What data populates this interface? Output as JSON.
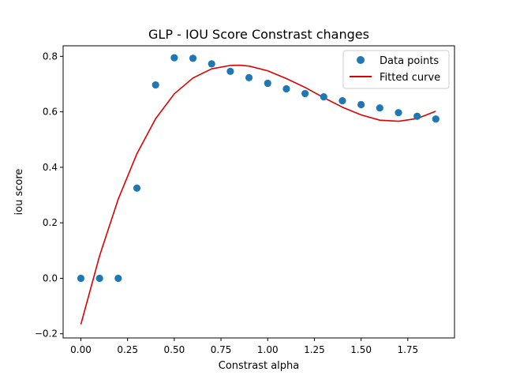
{
  "chart_data": {
    "type": "scatter",
    "title": "GLP - IOU Score Constrast changes",
    "xlabel": "Constrast alpha",
    "ylabel": "iou score",
    "xlim": [
      -0.095,
      2.0
    ],
    "ylim": [
      -0.215,
      0.838
    ],
    "xticks": [
      0.0,
      0.25,
      0.5,
      0.75,
      1.0,
      1.25,
      1.5,
      1.75
    ],
    "xtick_labels": [
      "0.00",
      "0.25",
      "0.50",
      "0.75",
      "1.00",
      "1.25",
      "1.50",
      "1.75"
    ],
    "yticks": [
      -0.2,
      0.0,
      0.2,
      0.4,
      0.6,
      0.8
    ],
    "ytick_labels": [
      "−0.2",
      "0.0",
      "0.2",
      "0.4",
      "0.6",
      "0.8"
    ],
    "grid": false,
    "legend_position": "top-right",
    "colors": {
      "points": "#1f77b4",
      "curve": "#dd0000"
    },
    "series": [
      {
        "name": "Data points",
        "kind": "scatter",
        "x": [
          0.0,
          0.1,
          0.2,
          0.3,
          0.4,
          0.5,
          0.6,
          0.7,
          0.8,
          0.9,
          1.0,
          1.1,
          1.2,
          1.3,
          1.4,
          1.5,
          1.6,
          1.7,
          1.8,
          1.9
        ],
        "y": [
          0.0,
          0.0,
          0.0,
          0.325,
          0.697,
          0.795,
          0.793,
          0.773,
          0.746,
          0.723,
          0.703,
          0.683,
          0.666,
          0.654,
          0.64,
          0.626,
          0.614,
          0.597,
          0.584,
          0.574
        ]
      },
      {
        "name": "Fitted curve",
        "kind": "line",
        "x": [
          0.0,
          0.1,
          0.2,
          0.3,
          0.4,
          0.5,
          0.6,
          0.7,
          0.8,
          0.85,
          0.9,
          1.0,
          1.1,
          1.2,
          1.3,
          1.4,
          1.5,
          1.6,
          1.7,
          1.8,
          1.9
        ],
        "y": [
          -0.166,
          0.081,
          0.285,
          0.449,
          0.575,
          0.665,
          0.722,
          0.755,
          0.767,
          0.768,
          0.765,
          0.748,
          0.72,
          0.688,
          0.651,
          0.617,
          0.589,
          0.57,
          0.566,
          0.576,
          0.602
        ]
      }
    ]
  }
}
